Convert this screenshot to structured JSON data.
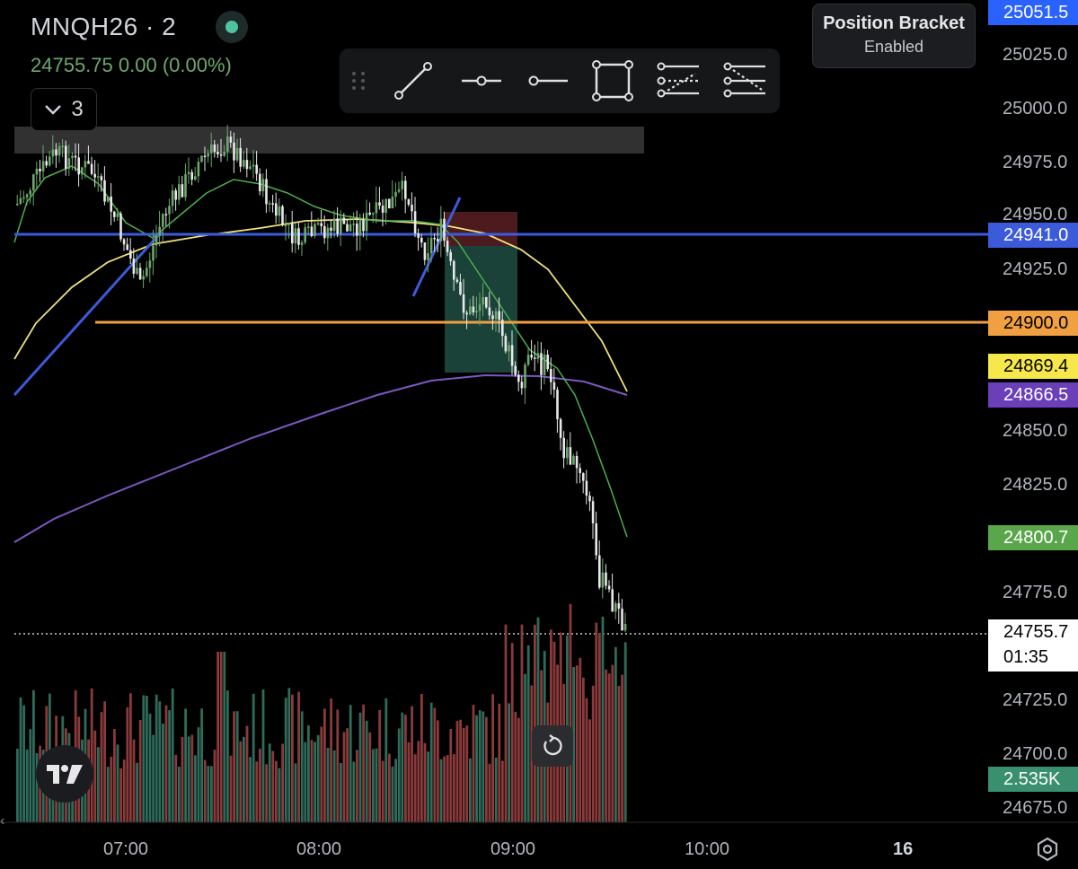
{
  "header": {
    "symbol": "MNQH26 · 2",
    "last_price": "24755.75",
    "change": "0.00",
    "change_pct": "(0.00%)",
    "collapse_count": "3"
  },
  "position_bracket": {
    "title": "Position Bracket",
    "status": "Enabled"
  },
  "toolbar": {
    "tools": [
      "drag-handle-icon",
      "trend-line-icon",
      "horizontal-ray-icon",
      "horizontal-line-icon",
      "rectangle-icon",
      "parallel-channel-icon",
      "fib-retracement-icon"
    ]
  },
  "price_axis": {
    "ticks": [
      "25025.0",
      "25000.0",
      "24975.0",
      "24950.0",
      "24925.0",
      "24850.0",
      "24825.0",
      "24775.0",
      "24725.0",
      "24700.0",
      "24675.0"
    ],
    "labels": {
      "top": "25051.5",
      "blue_line": "24941.0",
      "orange_line": "24900.0",
      "yellow_ma": "24869.4",
      "purple_ma": "24866.5",
      "green_ma": "24800.7",
      "last_price": "24755.7",
      "countdown": "01:35",
      "volume": "2.535K"
    }
  },
  "time_axis": {
    "labels": [
      "07:00",
      "08:00",
      "09:00",
      "10:00",
      "16"
    ]
  },
  "colors": {
    "up_candle": "#6ea86e",
    "down_candle": "#e8e8e8",
    "blue_line": "#3b5bdb",
    "orange_line": "#f0a040",
    "yellow_ma": "#f0e07a",
    "purple_ma": "#7e57c2",
    "green_ma": "#4caf50",
    "vol_up": "#2e6b5a",
    "vol_down": "#8a3a3a"
  }
}
